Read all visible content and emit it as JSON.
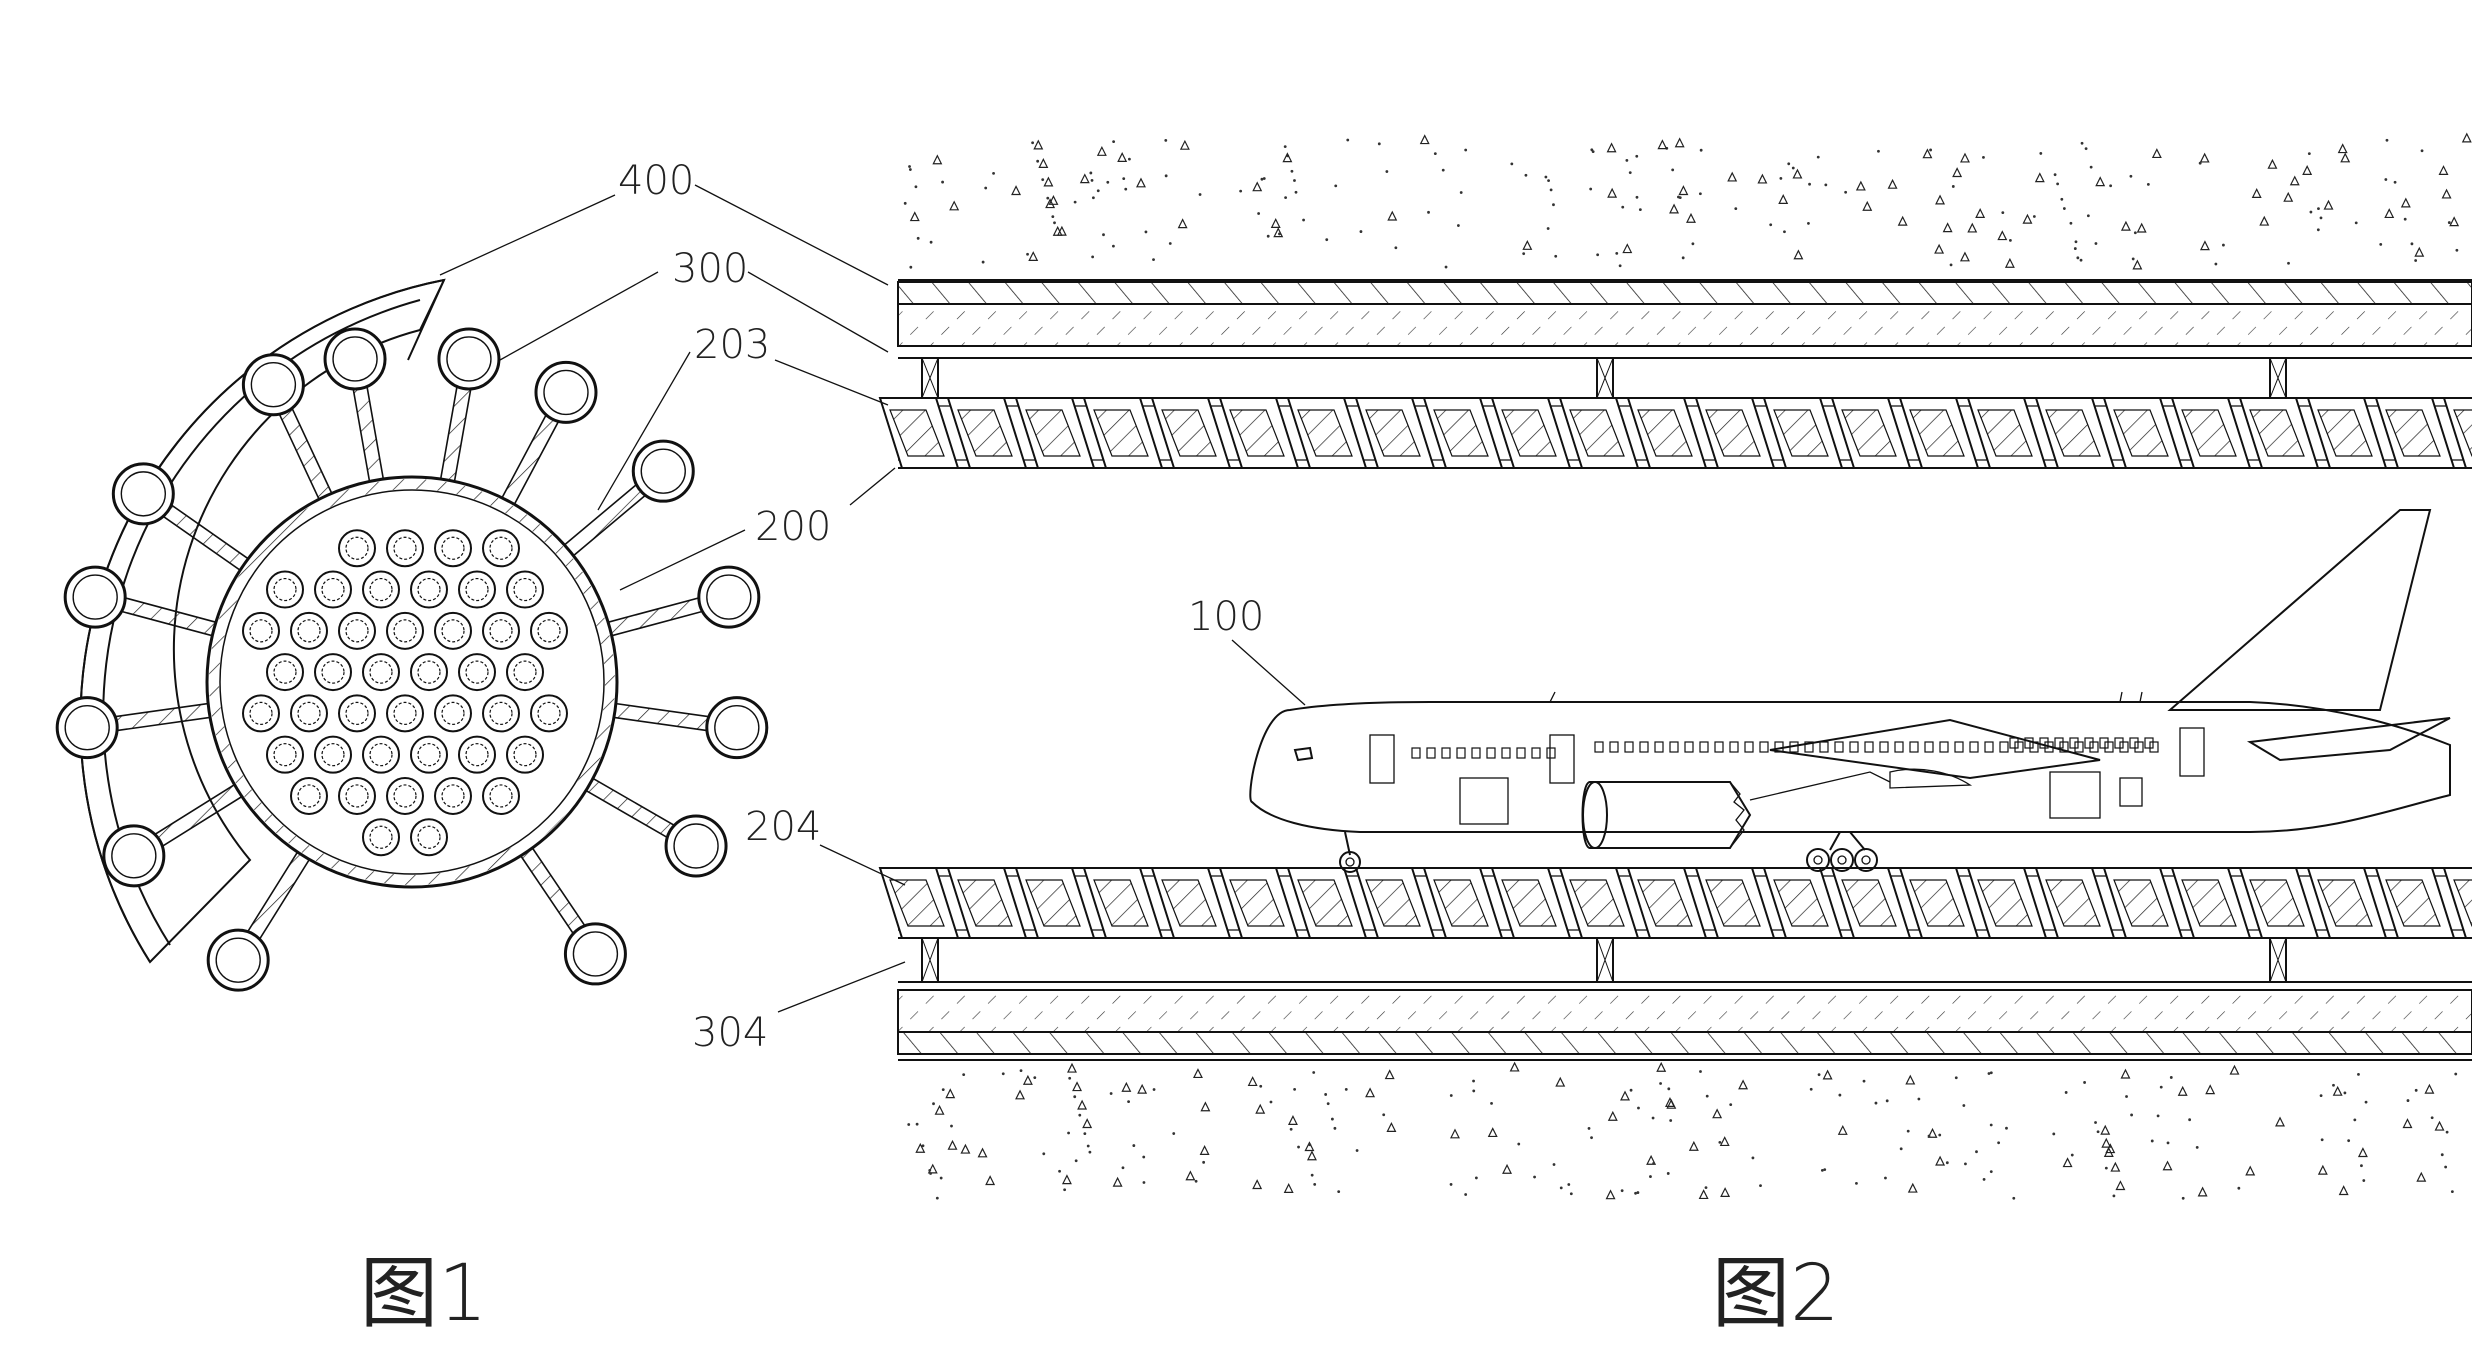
{
  "figures": {
    "fig1": {
      "caption": "图1"
    },
    "fig2": {
      "caption": "图2"
    }
  },
  "labels": {
    "l400": "400",
    "l300": "300",
    "l203": "203",
    "l200": "200",
    "l100": "100",
    "l204": "204",
    "l304": "304"
  },
  "colors": {
    "ink": "#111111",
    "background": "#ffffff"
  }
}
